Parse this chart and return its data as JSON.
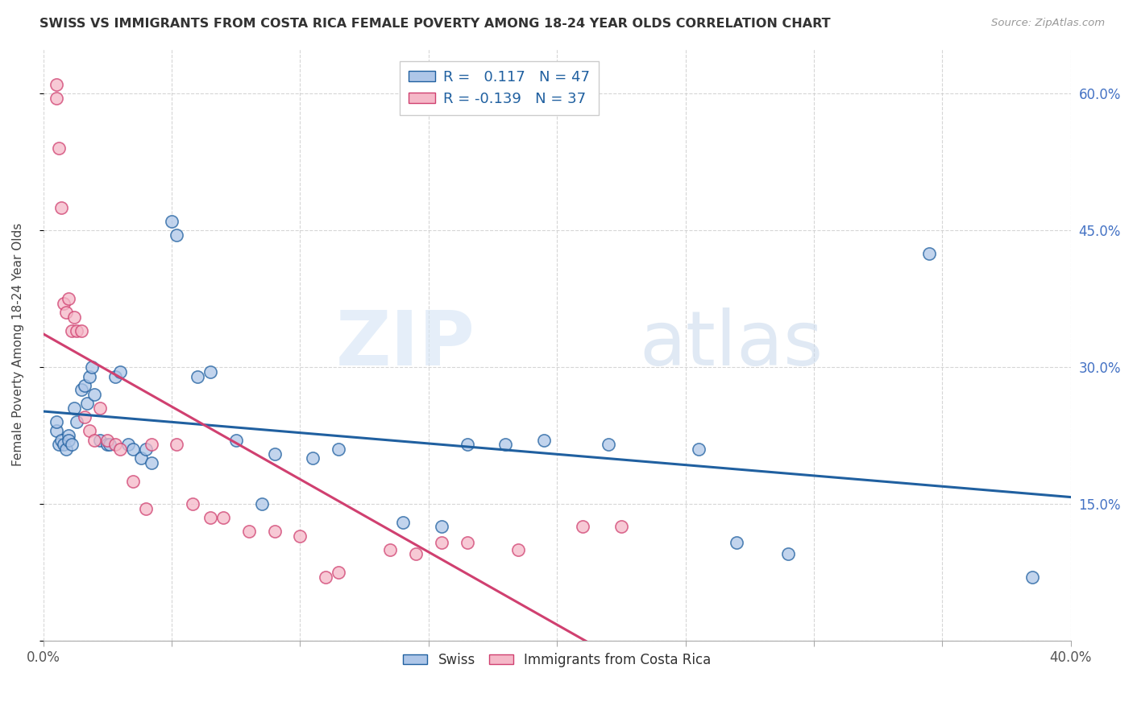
{
  "title": "SWISS VS IMMIGRANTS FROM COSTA RICA FEMALE POVERTY AMONG 18-24 YEAR OLDS CORRELATION CHART",
  "source": "Source: ZipAtlas.com",
  "ylabel": "Female Poverty Among 18-24 Year Olds",
  "xlim": [
    0.0,
    0.4
  ],
  "ylim": [
    0.0,
    0.65
  ],
  "swiss_R": 0.117,
  "swiss_N": 47,
  "cr_R": -0.139,
  "cr_N": 37,
  "swiss_color": "#aec6e8",
  "swiss_line_color": "#2060a0",
  "cr_color": "#f5b8c8",
  "cr_line_color": "#d04070",
  "watermark_zip": "ZIP",
  "watermark_atlas": "atlas",
  "background_color": "#ffffff",
  "grid_color": "#cccccc",
  "swiss_x": [
    0.005,
    0.005,
    0.006,
    0.007,
    0.008,
    0.009,
    0.01,
    0.01,
    0.011,
    0.012,
    0.013,
    0.015,
    0.016,
    0.017,
    0.018,
    0.019,
    0.02,
    0.022,
    0.025,
    0.026,
    0.028,
    0.03,
    0.033,
    0.035,
    0.038,
    0.04,
    0.042,
    0.05,
    0.052,
    0.06,
    0.065,
    0.075,
    0.085,
    0.09,
    0.105,
    0.115,
    0.14,
    0.155,
    0.165,
    0.18,
    0.195,
    0.22,
    0.255,
    0.27,
    0.29,
    0.345,
    0.385
  ],
  "swiss_y": [
    0.23,
    0.24,
    0.215,
    0.22,
    0.215,
    0.21,
    0.225,
    0.22,
    0.215,
    0.255,
    0.24,
    0.275,
    0.28,
    0.26,
    0.29,
    0.3,
    0.27,
    0.22,
    0.215,
    0.215,
    0.29,
    0.295,
    0.215,
    0.21,
    0.2,
    0.21,
    0.195,
    0.46,
    0.445,
    0.29,
    0.295,
    0.22,
    0.15,
    0.205,
    0.2,
    0.21,
    0.13,
    0.125,
    0.215,
    0.215,
    0.22,
    0.215,
    0.21,
    0.108,
    0.095,
    0.425,
    0.07
  ],
  "cr_x": [
    0.005,
    0.005,
    0.006,
    0.007,
    0.008,
    0.009,
    0.01,
    0.011,
    0.012,
    0.013,
    0.015,
    0.016,
    0.018,
    0.02,
    0.022,
    0.025,
    0.028,
    0.03,
    0.035,
    0.04,
    0.042,
    0.052,
    0.058,
    0.065,
    0.07,
    0.08,
    0.09,
    0.1,
    0.11,
    0.115,
    0.135,
    0.145,
    0.155,
    0.165,
    0.185,
    0.21,
    0.225
  ],
  "cr_y": [
    0.595,
    0.61,
    0.54,
    0.475,
    0.37,
    0.36,
    0.375,
    0.34,
    0.355,
    0.34,
    0.34,
    0.245,
    0.23,
    0.22,
    0.255,
    0.22,
    0.215,
    0.21,
    0.175,
    0.145,
    0.215,
    0.215,
    0.15,
    0.135,
    0.135,
    0.12,
    0.12,
    0.115,
    0.07,
    0.075,
    0.1,
    0.095,
    0.108,
    0.108,
    0.1,
    0.125,
    0.125
  ]
}
